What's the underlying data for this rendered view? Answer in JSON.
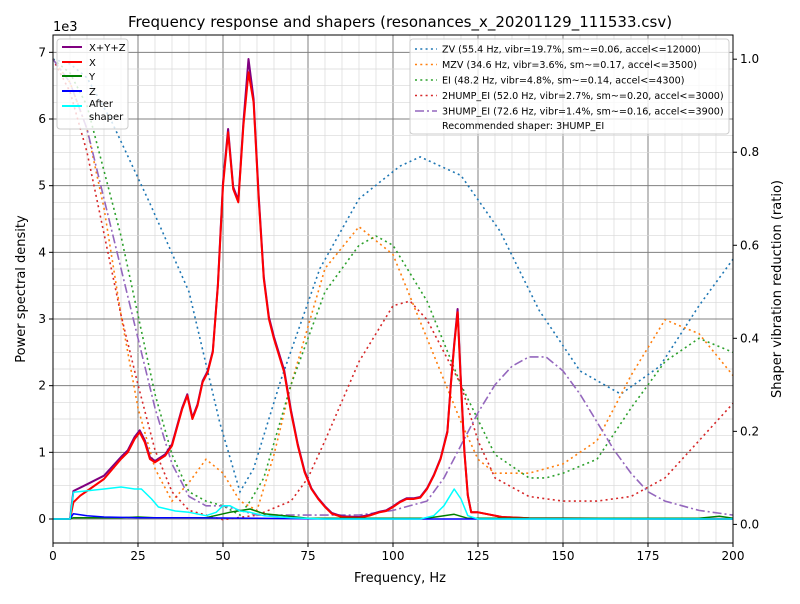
{
  "chart_data": {
    "type": "line",
    "title": "Frequency response and shapers (resonances_x_20201129_111533.csv)",
    "xlabel": "Frequency, Hz",
    "ylabel": "Power spectral density",
    "ylabel_right": "Shaper vibration reduction (ratio)",
    "y_offset_label": "1e3",
    "xlim": [
      0,
      200
    ],
    "ylim": [
      -0.36,
      7.26
    ],
    "ylim_right": [
      -0.04,
      1.052
    ],
    "xticks": [
      "0",
      "25",
      "50",
      "75",
      "100",
      "125",
      "150",
      "175",
      "200"
    ],
    "yticks": [
      "0",
      "1",
      "2",
      "3",
      "4",
      "5",
      "6",
      "7"
    ],
    "yticks_right": [
      "0.0",
      "0.2",
      "0.4",
      "0.6",
      "0.8",
      "1.0"
    ],
    "grid": true,
    "psd_series": [
      {
        "name": "X+Y+Z",
        "color": "#800080",
        "x": [
          0,
          5,
          6,
          8,
          10,
          15,
          20,
          22,
          24,
          25.5,
          27,
          28.5,
          30,
          33,
          35,
          38,
          39.5,
          41,
          42.5,
          44,
          45.5,
          47,
          48.5,
          50,
          51.5,
          53,
          54.5,
          56,
          57.5,
          59,
          60.5,
          62,
          63.5,
          65,
          68,
          70,
          72,
          74,
          76,
          78,
          80,
          82,
          85,
          90,
          93,
          96,
          98,
          100,
          102,
          104,
          106,
          108,
          110,
          112,
          114,
          116,
          117,
          118,
          119,
          120,
          121,
          122,
          123,
          125,
          128,
          132,
          140,
          200
        ],
        "y": [
          0,
          0,
          0.42,
          0.47,
          0.52,
          0.65,
          0.93,
          1.03,
          1.23,
          1.33,
          1.18,
          0.93,
          0.87,
          0.97,
          1.12,
          1.67,
          1.87,
          1.52,
          1.72,
          2.07,
          2.22,
          2.52,
          3.52,
          5.05,
          5.85,
          4.98,
          4.78,
          5.95,
          6.9,
          6.3,
          4.85,
          3.63,
          3.03,
          2.73,
          2.23,
          1.63,
          1.12,
          0.72,
          0.46,
          0.31,
          0.19,
          0.09,
          0.04,
          0.03,
          0.06,
          0.11,
          0.13,
          0.19,
          0.26,
          0.31,
          0.31,
          0.33,
          0.46,
          0.66,
          0.91,
          1.32,
          2.02,
          2.63,
          3.15,
          2.04,
          1.02,
          0.36,
          0.1,
          0.1,
          0.07,
          0.03,
          0.01,
          0
        ]
      },
      {
        "name": "X",
        "color": "#ff0000",
        "x": [
          0,
          5,
          6,
          8,
          10,
          15,
          20,
          22,
          24,
          25.5,
          27,
          28.5,
          30,
          33,
          35,
          38,
          39.5,
          41,
          42.5,
          44,
          45.5,
          47,
          48.5,
          50,
          51.5,
          53,
          54.5,
          56,
          57.5,
          59,
          60.5,
          62,
          63.5,
          65,
          68,
          70,
          72,
          74,
          76,
          78,
          80,
          82,
          85,
          90,
          93,
          96,
          98,
          100,
          102,
          104,
          106,
          108,
          110,
          112,
          114,
          116,
          117,
          118,
          119,
          120,
          121,
          122,
          123,
          125,
          128,
          132,
          140,
          200
        ],
        "y": [
          0,
          0,
          0.25,
          0.35,
          0.42,
          0.6,
          0.9,
          1.0,
          1.2,
          1.3,
          1.15,
          0.9,
          0.85,
          0.95,
          1.1,
          1.65,
          1.85,
          1.5,
          1.7,
          2.05,
          2.2,
          2.5,
          3.5,
          5.0,
          5.8,
          4.95,
          4.75,
          5.9,
          6.7,
          6.25,
          4.8,
          3.6,
          3.0,
          2.7,
          2.2,
          1.6,
          1.1,
          0.7,
          0.45,
          0.3,
          0.18,
          0.08,
          0.03,
          0.02,
          0.05,
          0.1,
          0.12,
          0.18,
          0.25,
          0.3,
          0.3,
          0.32,
          0.45,
          0.65,
          0.9,
          1.3,
          2.0,
          2.6,
          3.1,
          2.0,
          1.0,
          0.35,
          0.1,
          0.1,
          0.07,
          0.03,
          0.01,
          0
        ]
      },
      {
        "name": "Y",
        "color": "#008000",
        "x": [
          0,
          5,
          6,
          20,
          25,
          30,
          45,
          52,
          58,
          62,
          68,
          75,
          110,
          118,
          122,
          190,
          196,
          200
        ],
        "y": [
          0,
          0,
          0.02,
          0.02,
          0.03,
          0.02,
          0.02,
          0.1,
          0.15,
          0.08,
          0.05,
          0.01,
          0.01,
          0.07,
          0.01,
          0.01,
          0.04,
          0.01
        ]
      },
      {
        "name": "Z",
        "color": "#0000ff",
        "x": [
          0,
          5,
          6,
          10,
          15,
          25,
          40,
          60,
          80,
          200
        ],
        "y": [
          0,
          0,
          0.08,
          0.05,
          0.03,
          0.02,
          0.02,
          0.01,
          0,
          0
        ]
      },
      {
        "name": "After\nshaper",
        "color": "#00ffff",
        "x": [
          0,
          5,
          6,
          15,
          20,
          24,
          26,
          29,
          31,
          36,
          40,
          45,
          48,
          50,
          52,
          55,
          58,
          62,
          70,
          80,
          108,
          112,
          115,
          118,
          120,
          122,
          125,
          200
        ],
        "y": [
          0,
          0,
          0.4,
          0.45,
          0.48,
          0.45,
          0.45,
          0.3,
          0.18,
          0.12,
          0.1,
          0.05,
          0.1,
          0.2,
          0.2,
          0.12,
          0.1,
          0.05,
          0.02,
          0,
          0,
          0.05,
          0.2,
          0.45,
          0.3,
          0.05,
          0,
          0
        ]
      }
    ],
    "shaper_series": [
      {
        "name": "ZV (55.4 Hz, vibr=19.7%, sm~=0.06, accel<=12000)",
        "color": "#1f77b4",
        "style": "dotted",
        "x": [
          0,
          5,
          10,
          17,
          28.5,
          40,
          49,
          55,
          59,
          67,
          78.5,
          90,
          102,
          108,
          120,
          131.5,
          143,
          155,
          167,
          178.5,
          190,
          200
        ],
        "y": [
          1.0,
          0.99,
          0.96,
          0.87,
          0.69,
          0.5,
          0.22,
          0.07,
          0.12,
          0.31,
          0.55,
          0.7,
          0.77,
          0.79,
          0.75,
          0.63,
          0.46,
          0.33,
          0.28,
          0.34,
          0.47,
          0.57
        ]
      },
      {
        "name": "MZV (34.6 Hz, vibr=3.6%, sm~=0.17, accel<=3500)",
        "color": "#ff7f0e",
        "style": "dotted",
        "x": [
          0,
          5,
          10,
          15,
          20,
          25,
          30,
          35,
          40,
          45,
          50,
          55,
          60,
          65,
          70,
          80,
          90,
          100,
          110,
          120,
          125,
          130,
          140,
          150,
          160,
          170,
          180,
          190,
          200
        ],
        "y": [
          1.0,
          0.95,
          0.85,
          0.68,
          0.45,
          0.25,
          0.12,
          0.05,
          0.09,
          0.14,
          0.11,
          0.05,
          0.03,
          0.15,
          0.3,
          0.55,
          0.64,
          0.58,
          0.4,
          0.22,
          0.14,
          0.11,
          0.11,
          0.13,
          0.18,
          0.32,
          0.44,
          0.41,
          0.32
        ]
      },
      {
        "name": "EI (48.2 Hz, vibr=4.8%, sm~=0.14, accel<=4300)",
        "color": "#2ca02c",
        "style": "dotted",
        "x": [
          0,
          5,
          10,
          20,
          25,
          30,
          35,
          40,
          45,
          50,
          55,
          58,
          62,
          70,
          80,
          90,
          95,
          100,
          110,
          120,
          130,
          140,
          145,
          150,
          160,
          170,
          180,
          190,
          200
        ],
        "y": [
          1.0,
          0.97,
          0.9,
          0.62,
          0.45,
          0.28,
          0.15,
          0.07,
          0.05,
          0.04,
          0.02,
          0.05,
          0.1,
          0.3,
          0.5,
          0.6,
          0.62,
          0.6,
          0.48,
          0.3,
          0.15,
          0.1,
          0.1,
          0.11,
          0.14,
          0.25,
          0.35,
          0.4,
          0.37
        ]
      },
      {
        "name": "2HUMP_EI (52.0 Hz, vibr=2.7%, sm~=0.20, accel<=3000)",
        "color": "#d62728",
        "style": "dotted",
        "x": [
          0,
          5,
          10,
          20,
          25,
          30,
          35,
          40,
          50,
          60,
          70,
          75,
          80,
          90,
          100,
          105,
          110,
          120,
          125,
          130,
          140,
          150,
          160,
          170,
          180,
          190,
          200
        ],
        "y": [
          1.0,
          0.93,
          0.8,
          0.45,
          0.3,
          0.16,
          0.07,
          0.03,
          0.01,
          0.02,
          0.05,
          0.1,
          0.18,
          0.35,
          0.47,
          0.48,
          0.44,
          0.3,
          0.18,
          0.1,
          0.06,
          0.05,
          0.05,
          0.06,
          0.1,
          0.18,
          0.26
        ]
      },
      {
        "name": "3HUMP_EI (72.6 Hz, vibr=1.4%, sm~=0.16, accel<=3900)",
        "color": "#9467bd",
        "style": "dashdot",
        "x": [
          0,
          5,
          10,
          20,
          25,
          30,
          35,
          40,
          45,
          50,
          55,
          60,
          70,
          80,
          90,
          100,
          110,
          115,
          120,
          125,
          130,
          135,
          140,
          145,
          150,
          155,
          160,
          165,
          170,
          175,
          180,
          190,
          200
        ],
        "y": [
          1.0,
          0.95,
          0.85,
          0.55,
          0.4,
          0.25,
          0.13,
          0.06,
          0.04,
          0.04,
          0.03,
          0.02,
          0.02,
          0.02,
          0.02,
          0.03,
          0.05,
          0.1,
          0.17,
          0.24,
          0.3,
          0.34,
          0.36,
          0.36,
          0.33,
          0.28,
          0.22,
          0.16,
          0.11,
          0.07,
          0.05,
          0.03,
          0.02
        ]
      }
    ],
    "legend_left": {
      "placement": "top-left"
    },
    "legend_right": {
      "placement": "top-right",
      "note": "Recommended shaper: 3HUMP_EI"
    }
  }
}
